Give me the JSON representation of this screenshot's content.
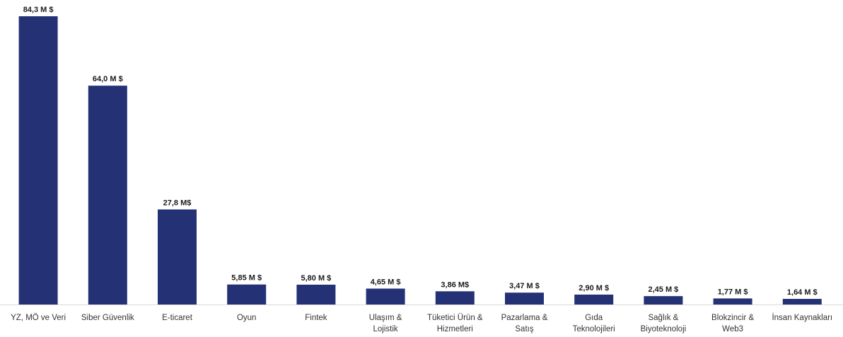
{
  "chart_data": {
    "type": "bar",
    "title": "",
    "xlabel": "",
    "ylabel": "",
    "ylim": [
      0,
      84.3
    ],
    "grid": false,
    "legend": "none",
    "bar_color": "#243275",
    "categories": [
      [
        "YZ, MÖ ve Veri"
      ],
      [
        "Siber Güvenlik"
      ],
      [
        "E-ticaret"
      ],
      [
        "Oyun"
      ],
      [
        "Fintek"
      ],
      [
        "Ulaşım &",
        "Lojistik"
      ],
      [
        "Tüketici Ürün &",
        "Hizmetleri"
      ],
      [
        "Pazarlama &",
        "Satış"
      ],
      [
        "Gıda",
        "Teknolojileri"
      ],
      [
        "Sağlık &",
        "Biyoteknoloji"
      ],
      [
        "Blokzincir &",
        "Web3"
      ],
      [
        "İnsan Kaynakları"
      ]
    ],
    "values": [
      84.3,
      64.0,
      27.8,
      5.85,
      5.8,
      4.65,
      3.86,
      3.47,
      2.9,
      2.45,
      1.77,
      1.64
    ],
    "value_labels": [
      "84,3 M $",
      "64,0 M $",
      "27,8 M$",
      "5,85 M $",
      "5,80 M $",
      "4,65 M $",
      "3,86 M$",
      "3,47 M $",
      "2,90 M $",
      "2,45 M $",
      "1,77 M $",
      "1,64 M $"
    ],
    "unit": "M $"
  }
}
